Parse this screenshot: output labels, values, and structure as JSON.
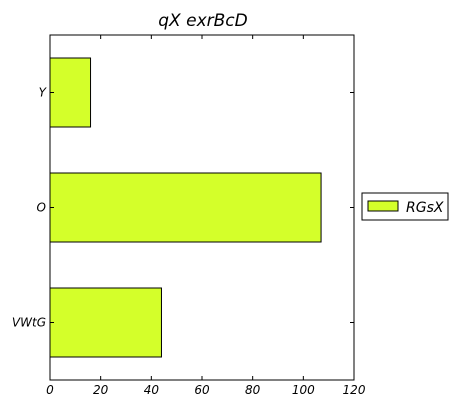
{
  "chart_data": {
    "type": "bar",
    "orientation": "horizontal",
    "title": "qX  exrBcD",
    "xlabel": "",
    "ylabel": "",
    "categories": [
      "VWtG",
      "O",
      "Y"
    ],
    "series": [
      {
        "name": "RGsX",
        "values": [
          44,
          107,
          16
        ],
        "color": "#d4ff2a"
      }
    ],
    "xlim": [
      0,
      120
    ],
    "xticks": [
      0,
      20,
      40,
      60,
      80,
      100,
      120
    ],
    "grid": false,
    "legend_position": "right"
  }
}
